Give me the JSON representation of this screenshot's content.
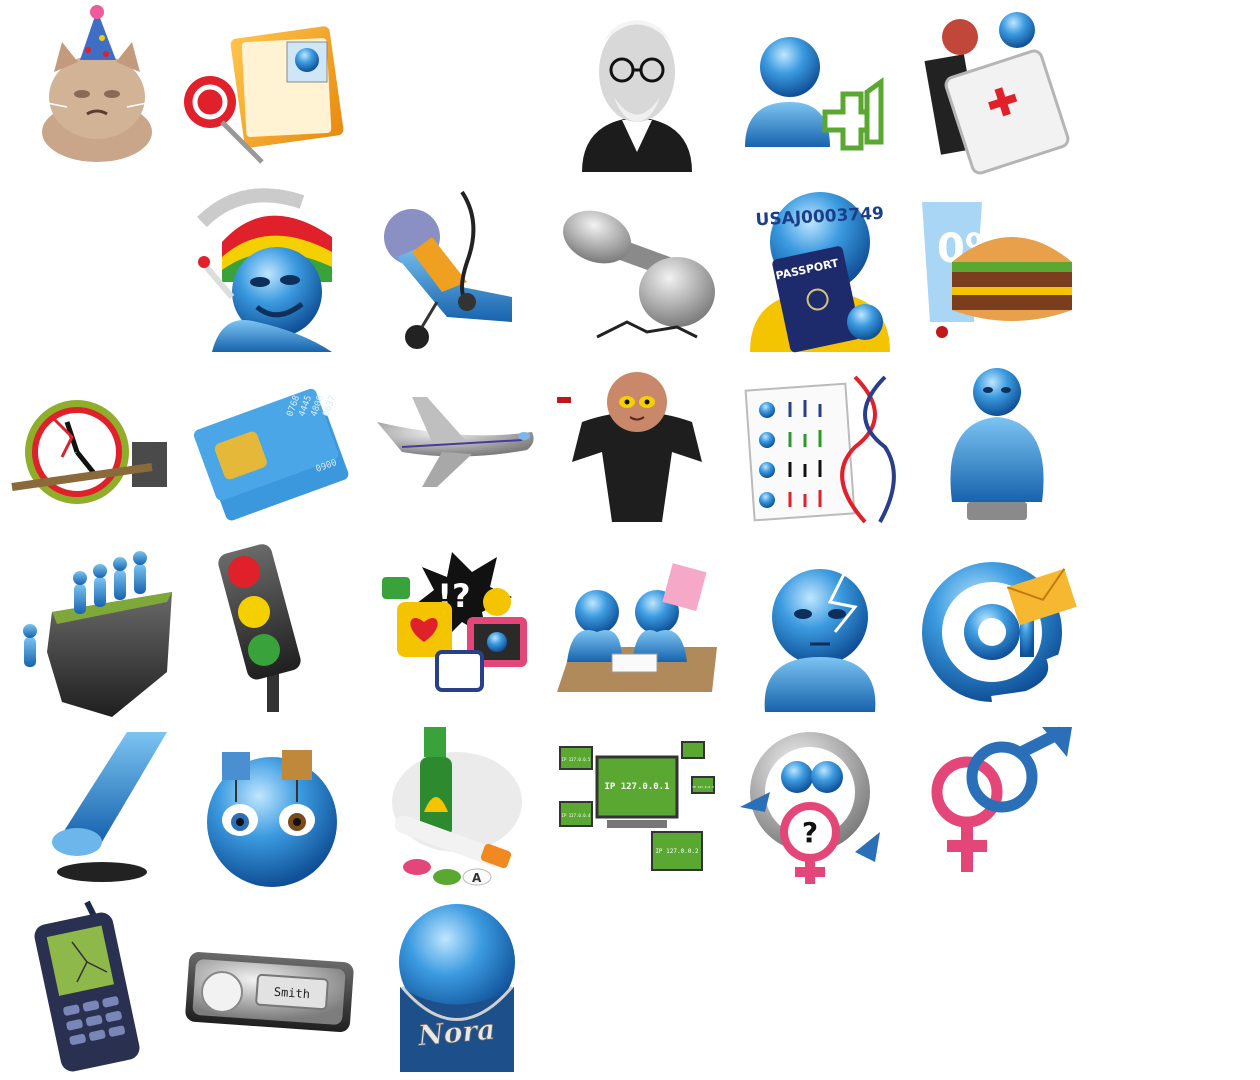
{
  "icons": {
    "passport": {
      "serial": "USAJ0003749",
      "label": "PASSPORT"
    },
    "sim": {
      "digits": [
        "0768",
        "4445",
        "4800",
        "0637"
      ],
      "digits2": "0900"
    },
    "network": {
      "center_ip": "IP 127.0.0.1",
      "ip2": "IP 127.0.0.2",
      "ip3": "IP 127.0.0.3",
      "ip4": "IP 127.0.0.4",
      "ip5": "IP 127.0.0.5"
    },
    "doorbell": {
      "name": "Smith"
    },
    "nametag": {
      "name": "Nora"
    },
    "plus_one": {
      "label": "+1"
    },
    "social": {
      "bang": "!?"
    },
    "glass": {
      "label": "0%"
    },
    "pills": {
      "letter": "A"
    }
  },
  "colors": {
    "blue": "#2f8fd8",
    "dark_blue": "#1a5fa8",
    "green": "#5aa832",
    "red": "#e0202a",
    "pink": "#e5467a"
  }
}
